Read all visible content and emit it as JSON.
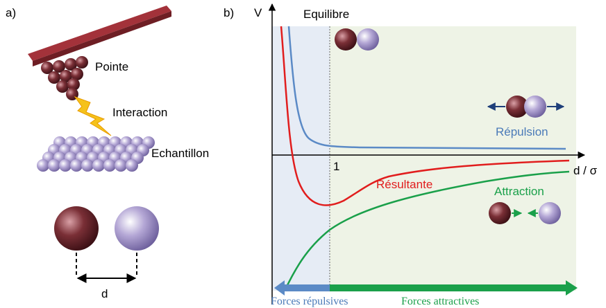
{
  "panel_a": {
    "label": "a)",
    "tip": "Pointe",
    "interaction": "Interaction",
    "sample": "Echantillon",
    "distance": "d"
  },
  "panel_b": {
    "label": "b)",
    "y_axis": "V",
    "x_axis": "d / σ",
    "x_marker": "1",
    "equilibrium": "Equilibre",
    "curves": {
      "repulsion": "Répulsion",
      "resultant": "Résultante",
      "attraction": "Attraction"
    },
    "regions": {
      "repulsive": "Forces répulsives",
      "attractive": "Forces attractives"
    }
  }
}
